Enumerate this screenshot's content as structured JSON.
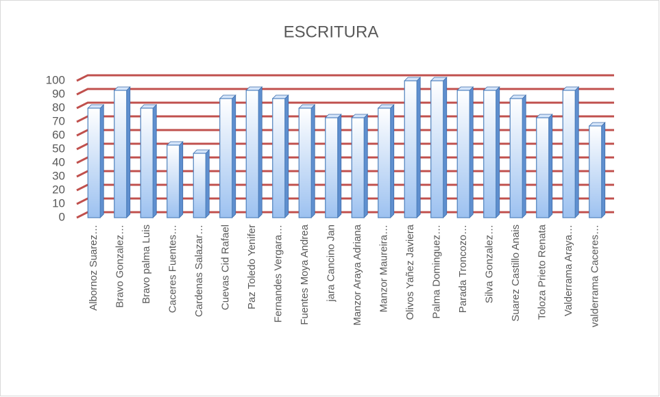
{
  "chart_data": {
    "type": "bar",
    "title": "ESCRITURA",
    "categories": [
      "Albornoz Suarez…",
      "Bravo Gonzalez…",
      "Bravo palma Luis",
      "Caceres Fuentes…",
      "Cardenas Salazar…",
      "Cuevas Cid Rafael",
      "Paz Toledo Yenifer",
      "Fernandes Vergara…",
      "Fuentes Moya Andrea",
      "jara Cancino Jan",
      "Manzor Araya Adriana",
      "Manzor Maureira…",
      "Olivos Yañez Javiera",
      "Palma Dominguez…",
      "Parada Troncozo…",
      "Silva Gonzalez…",
      "Suarez Castillo Anais",
      "Toloza Prieto Renata",
      "Valderrama Araya…",
      "valderrama Caceres…"
    ],
    "values": [
      80,
      93,
      80,
      53,
      47,
      87,
      93,
      87,
      80,
      73,
      73,
      80,
      100,
      100,
      93,
      93,
      87,
      73,
      93,
      67
    ],
    "color": "#4f81bd",
    "grid_color": "#c0504d",
    "ylim": [
      0,
      100
    ],
    "yticks": [
      0,
      10,
      20,
      30,
      40,
      50,
      60,
      70,
      80,
      90,
      100
    ],
    "grid": true
  }
}
